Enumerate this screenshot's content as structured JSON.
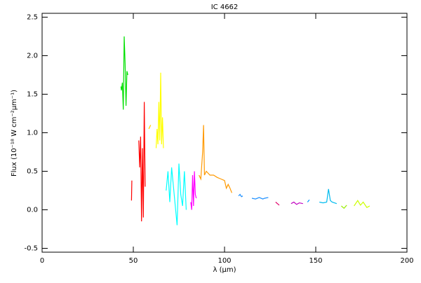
{
  "chart_data": {
    "type": "line",
    "title": "IC 4662",
    "x_label": "λ (μm)",
    "y_label": "Flux (10⁻¹⁸ W cm⁻²μm⁻¹)",
    "xlim": [
      0,
      200
    ],
    "xticks": [
      0,
      50,
      100,
      150,
      200
    ],
    "ylim": [
      -0.55,
      2.55
    ],
    "yticks": [
      -0.5,
      {
        "value": 0,
        "label": "0.0"
      },
      0.5,
      {
        "value": 1,
        "label": "1.0"
      },
      1.5,
      {
        "value": 2,
        "label": "2.0"
      },
      2.5
    ],
    "series": [
      {
        "color": "#00e000",
        "x": [
          43.2,
          43.5,
          44,
          44.5,
          45,
          45.5,
          46,
          46.5,
          47
        ],
        "values": [
          1.6,
          1.55,
          1.65,
          1.3,
          2.25,
          1.9,
          1.35,
          1.8,
          1.75
        ]
      },
      {
        "color": "#ff0000",
        "x": [
          49,
          49.2
        ],
        "values": [
          0.12,
          0.38
        ]
      },
      {
        "color": "#ff0000",
        "x": [
          53,
          53.5,
          54,
          54.5,
          55,
          55.5,
          56,
          56.5
        ],
        "values": [
          0.9,
          0.55,
          0.95,
          -0.15,
          0.8,
          -0.1,
          1.4,
          0.3
        ]
      },
      {
        "color": "#ffcc00",
        "x": [
          58.5,
          59.5
        ],
        "values": [
          1.05,
          1.1
        ]
      },
      {
        "color": "#ffff00",
        "x": [
          62.5,
          63,
          63.5,
          64,
          64.5,
          65,
          65.5,
          66,
          66.5
        ],
        "values": [
          0.8,
          1.05,
          0.85,
          1.4,
          0.9,
          1.78,
          0.85,
          1.2,
          0.8
        ]
      },
      {
        "color": "#00ffff",
        "x": [
          68,
          69,
          70,
          71,
          72,
          73,
          74,
          75,
          76,
          77,
          78,
          79
        ],
        "values": [
          0.25,
          0.5,
          0.1,
          0.55,
          0.3,
          0.05,
          -0.2,
          0.6,
          0.2,
          0.05,
          0.5,
          0.0
        ]
      },
      {
        "color": "#ff00ff",
        "x": [
          81.5,
          82,
          82.5,
          83,
          83.5,
          84,
          84.5
        ],
        "values": [
          0.1,
          0.0,
          0.45,
          0.05,
          0.5,
          0.2,
          0.15
        ]
      },
      {
        "color": "#ff9900",
        "x": [
          86,
          87,
          88,
          88.5,
          89,
          90,
          92,
          94,
          96,
          98,
          100,
          101,
          102,
          103,
          104
        ],
        "values": [
          0.45,
          0.4,
          0.75,
          1.1,
          0.45,
          0.5,
          0.45,
          0.45,
          0.42,
          0.4,
          0.38,
          0.28,
          0.33,
          0.28,
          0.22
        ]
      },
      {
        "color": "#1e90ff",
        "x": [
          107.7,
          108.5,
          109.3,
          110
        ],
        "values": [
          0.18,
          0.2,
          0.17,
          0.18
        ]
      },
      {
        "color": "#1e90ff",
        "x": [
          115,
          117,
          119,
          121,
          122,
          124
        ],
        "values": [
          0.15,
          0.14,
          0.16,
          0.14,
          0.15,
          0.16
        ]
      },
      {
        "color": "#e0006a",
        "x": [
          128,
          129,
          130
        ],
        "values": [
          0.1,
          0.08,
          0.06
        ]
      },
      {
        "color": "#c000c0",
        "x": [
          136.5,
          138,
          139.5,
          141,
          143
        ],
        "values": [
          0.08,
          0.1,
          0.07,
          0.09,
          0.08
        ]
      },
      {
        "color": "#0099ff",
        "x": [
          145.5,
          146.5
        ],
        "values": [
          0.1,
          0.13
        ]
      },
      {
        "color": "#00bbee",
        "x": [
          152,
          154,
          156,
          157,
          158,
          159,
          161.5
        ],
        "values": [
          0.1,
          0.09,
          0.1,
          0.27,
          0.12,
          0.1,
          0.08
        ]
      },
      {
        "color": "#99ee00",
        "x": [
          164,
          165.5,
          167
        ],
        "values": [
          0.05,
          0.02,
          0.06
        ]
      },
      {
        "color": "#ccff00",
        "x": [
          171,
          173,
          174.5,
          176,
          178,
          179.6
        ],
        "values": [
          0.05,
          0.12,
          0.06,
          0.1,
          0.03,
          0.05
        ]
      }
    ]
  }
}
